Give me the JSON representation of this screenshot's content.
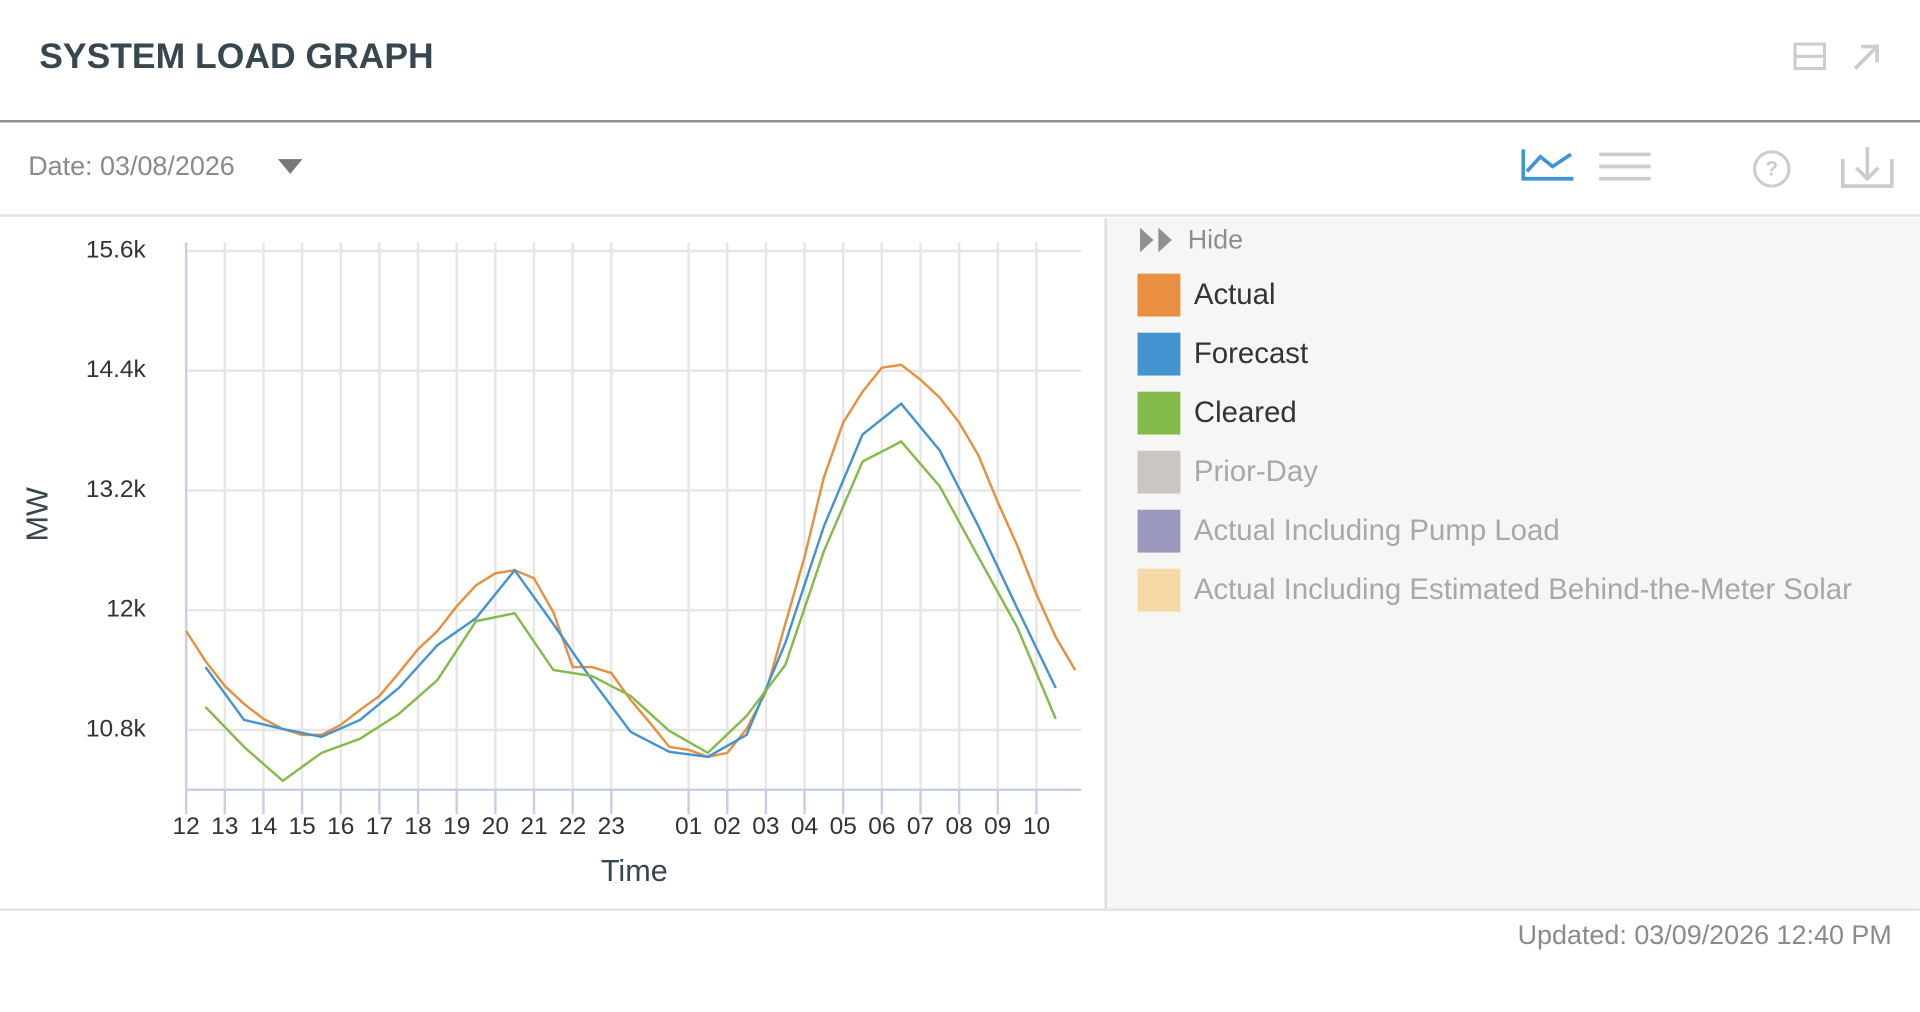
{
  "header": {
    "title": "SYSTEM LOAD GRAPH"
  },
  "toolbar": {
    "date_label": "Date: 03/08/2026"
  },
  "legend_toggle": "Hide",
  "footer": {
    "updated": "Updated: 03/09/2026 12:40 PM"
  },
  "chart_data": {
    "type": "line",
    "x_label": "Time",
    "y_label": "MW",
    "xlim": [
      12,
      35
    ],
    "xticks": [
      12,
      13,
      14,
      15,
      16,
      17,
      18,
      19,
      20,
      21,
      22,
      23,
      {
        "value": 25,
        "label": "01"
      },
      {
        "value": 26,
        "label": "02"
      },
      {
        "value": 27,
        "label": "03"
      },
      {
        "value": 28,
        "label": "04"
      },
      {
        "value": 29,
        "label": "05"
      },
      {
        "value": 30,
        "label": "06"
      },
      {
        "value": 31,
        "label": "07"
      },
      {
        "value": 32,
        "label": "08"
      },
      {
        "value": 33,
        "label": "09"
      },
      {
        "value": 34,
        "label": "10"
      }
    ],
    "ylim": [
      10200,
      15600
    ],
    "yticks": [
      {
        "value": 10800,
        "label": "10.8k"
      },
      {
        "value": 12000,
        "label": "12k"
      },
      {
        "value": 13200,
        "label": "13.2k"
      },
      {
        "value": 14400,
        "label": "14.4k"
      },
      {
        "value": 15600,
        "label": "15.6k"
      }
    ],
    "grid": true,
    "legend": "right",
    "series": [
      {
        "name": "Actual",
        "color": "#e8903f",
        "visible": true,
        "x": [
          12,
          12.5,
          13,
          13.5,
          14,
          14.5,
          15,
          15.5,
          16,
          16.5,
          17,
          17.5,
          18,
          18.5,
          19,
          19.5,
          20,
          20.5,
          21,
          21.5,
          22,
          22.5,
          23,
          23.5,
          24,
          24.5,
          25,
          25.5,
          26,
          26.5,
          27,
          27.5,
          28,
          28.5,
          29,
          29.5,
          30,
          30.5,
          31,
          31.5,
          32,
          32.5,
          33,
          33.5,
          34,
          34.5,
          35
        ],
        "values": [
          11790,
          11490,
          11240,
          11060,
          10910,
          10810,
          10750,
          10750,
          10850,
          11000,
          11140,
          11370,
          11610,
          11790,
          12040,
          12250,
          12370,
          12400,
          12320,
          11980,
          11430,
          11430,
          11370,
          11100,
          10870,
          10630,
          10600,
          10530,
          10570,
          10810,
          11180,
          11860,
          12530,
          13330,
          13880,
          14190,
          14430,
          14460,
          14310,
          14130,
          13880,
          13550,
          13080,
          12650,
          12160,
          11730,
          11400
        ]
      },
      {
        "name": "Forecast",
        "color": "#4394d0",
        "visible": true,
        "x": [
          12.5,
          13.5,
          14.5,
          15.5,
          16.5,
          17.5,
          18.5,
          19.5,
          20.5,
          21.5,
          22.5,
          23.5,
          24.5,
          25.5,
          26.5,
          27.5,
          28.5,
          29.5,
          30.5,
          31.5,
          32.5,
          33.5,
          34.5
        ],
        "values": [
          11430,
          10900,
          10810,
          10730,
          10900,
          11220,
          11650,
          11920,
          12400,
          11860,
          11300,
          10780,
          10580,
          10530,
          10750,
          11670,
          12840,
          13760,
          14070,
          13600,
          12840,
          12020,
          11220
        ]
      },
      {
        "name": "Cleared",
        "color": "#84bb4a",
        "visible": true,
        "x": [
          12.5,
          13.5,
          14.5,
          15.5,
          16.5,
          17.5,
          18.5,
          19.5,
          20.5,
          21.5,
          22.5,
          23.5,
          24.5,
          25.5,
          26.5,
          27.5,
          28.5,
          29.5,
          30.5,
          31.5,
          32.5,
          33.5,
          34.5
        ],
        "values": [
          11030,
          10630,
          10290,
          10570,
          10710,
          10960,
          11300,
          11890,
          11970,
          11400,
          11340,
          11140,
          10790,
          10570,
          10940,
          11450,
          12590,
          13490,
          13690,
          13240,
          12530,
          11830,
          10910
        ]
      },
      {
        "name": "Prior-Day",
        "color": "#cbc6c1",
        "visible": false,
        "x": [],
        "values": []
      },
      {
        "name": "Actual Including Pump Load",
        "color": "#9b98bd",
        "visible": false,
        "x": [],
        "values": []
      },
      {
        "name": "Actual Including Estimated Behind-the-Meter Solar",
        "color": "#f5d9a6",
        "visible": false,
        "x": [],
        "values": []
      }
    ]
  }
}
